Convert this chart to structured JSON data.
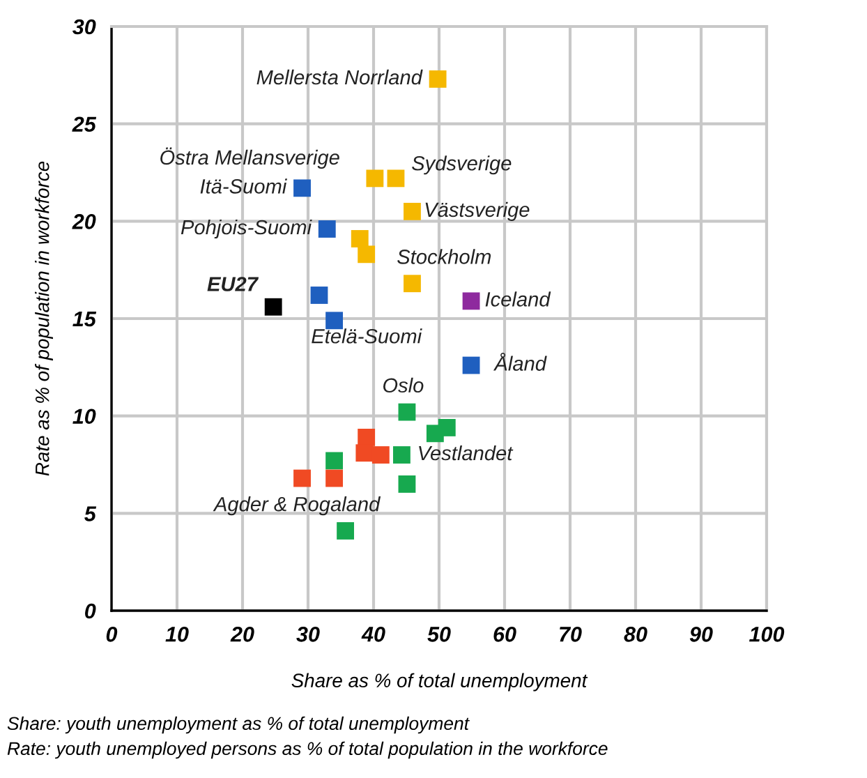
{
  "chart_data": {
    "type": "scatter",
    "xlabel": "Share as % of total unemployment",
    "ylabel": "Rate as % of population in workforce",
    "xlim": [
      0,
      100
    ],
    "ylim": [
      0,
      30
    ],
    "xticks": [
      0,
      10,
      20,
      30,
      40,
      50,
      60,
      70,
      80,
      90,
      100
    ],
    "yticks": [
      0,
      5,
      10,
      15,
      20,
      25,
      30
    ],
    "grid": true,
    "marker": "square",
    "series": [
      {
        "color": "#f5b800",
        "x": [
          49.8,
          40.2,
          43.4,
          45.9,
          37.9,
          38.9,
          45.9
        ],
        "values": [
          27.3,
          22.2,
          22.2,
          20.5,
          19.1,
          18.3,
          16.8
        ]
      },
      {
        "color": "#1f5fbf",
        "x": [
          29.1,
          32.9,
          31.7,
          34.0,
          54.9
        ],
        "values": [
          21.7,
          19.6,
          16.2,
          14.9,
          12.6
        ]
      },
      {
        "color": "#000000",
        "x": [
          24.7
        ],
        "values": [
          15.6
        ]
      },
      {
        "color": "#8e2a9e",
        "x": [
          54.9
        ],
        "values": [
          15.9
        ]
      },
      {
        "color": "#17a94f",
        "x": [
          45.1,
          49.4,
          51.2,
          44.3,
          34.0,
          45.1,
          35.7
        ],
        "values": [
          10.2,
          9.1,
          9.4,
          8.0,
          7.7,
          6.5,
          4.1
        ]
      },
      {
        "color": "#f04a23",
        "x": [
          38.9,
          38.6,
          41.1,
          29.1,
          34.0
        ],
        "values": [
          8.9,
          8.1,
          8.0,
          6.8,
          6.8
        ]
      }
    ],
    "annotations": [
      {
        "text": "Mellersta Norrland",
        "x": 49.8,
        "y": 27.3
      },
      {
        "text": "Östra Mellansverige",
        "x": 40.2,
        "y": 22.2
      },
      {
        "text": "Sydsverige",
        "x": 43.4,
        "y": 22.2
      },
      {
        "text": "Itä-Suomi",
        "x": 29.1,
        "y": 21.7
      },
      {
        "text": "Västsverige",
        "x": 45.9,
        "y": 20.5
      },
      {
        "text": "Pohjois-Suomi",
        "x": 32.9,
        "y": 19.6
      },
      {
        "text": "Stockholm",
        "x": 45.9,
        "y": 16.8
      },
      {
        "text": "EU27",
        "x": 24.7,
        "y": 15.6
      },
      {
        "text": "Iceland",
        "x": 54.9,
        "y": 15.9
      },
      {
        "text": "Etelä-Suomi",
        "x": 34.0,
        "y": 14.9
      },
      {
        "text": "Åland",
        "x": 54.9,
        "y": 12.6
      },
      {
        "text": "Oslo",
        "x": 45.1,
        "y": 10.2
      },
      {
        "text": "Vestlandet",
        "x": 44.3,
        "y": 8.0
      },
      {
        "text": "Agder & Rogaland",
        "x": 35.7,
        "y": 4.1
      },
      "Share: youth unemployment as % of total unemployment",
      "Rate: youth unemployed persons as % of total population in the workforce"
    ]
  }
}
